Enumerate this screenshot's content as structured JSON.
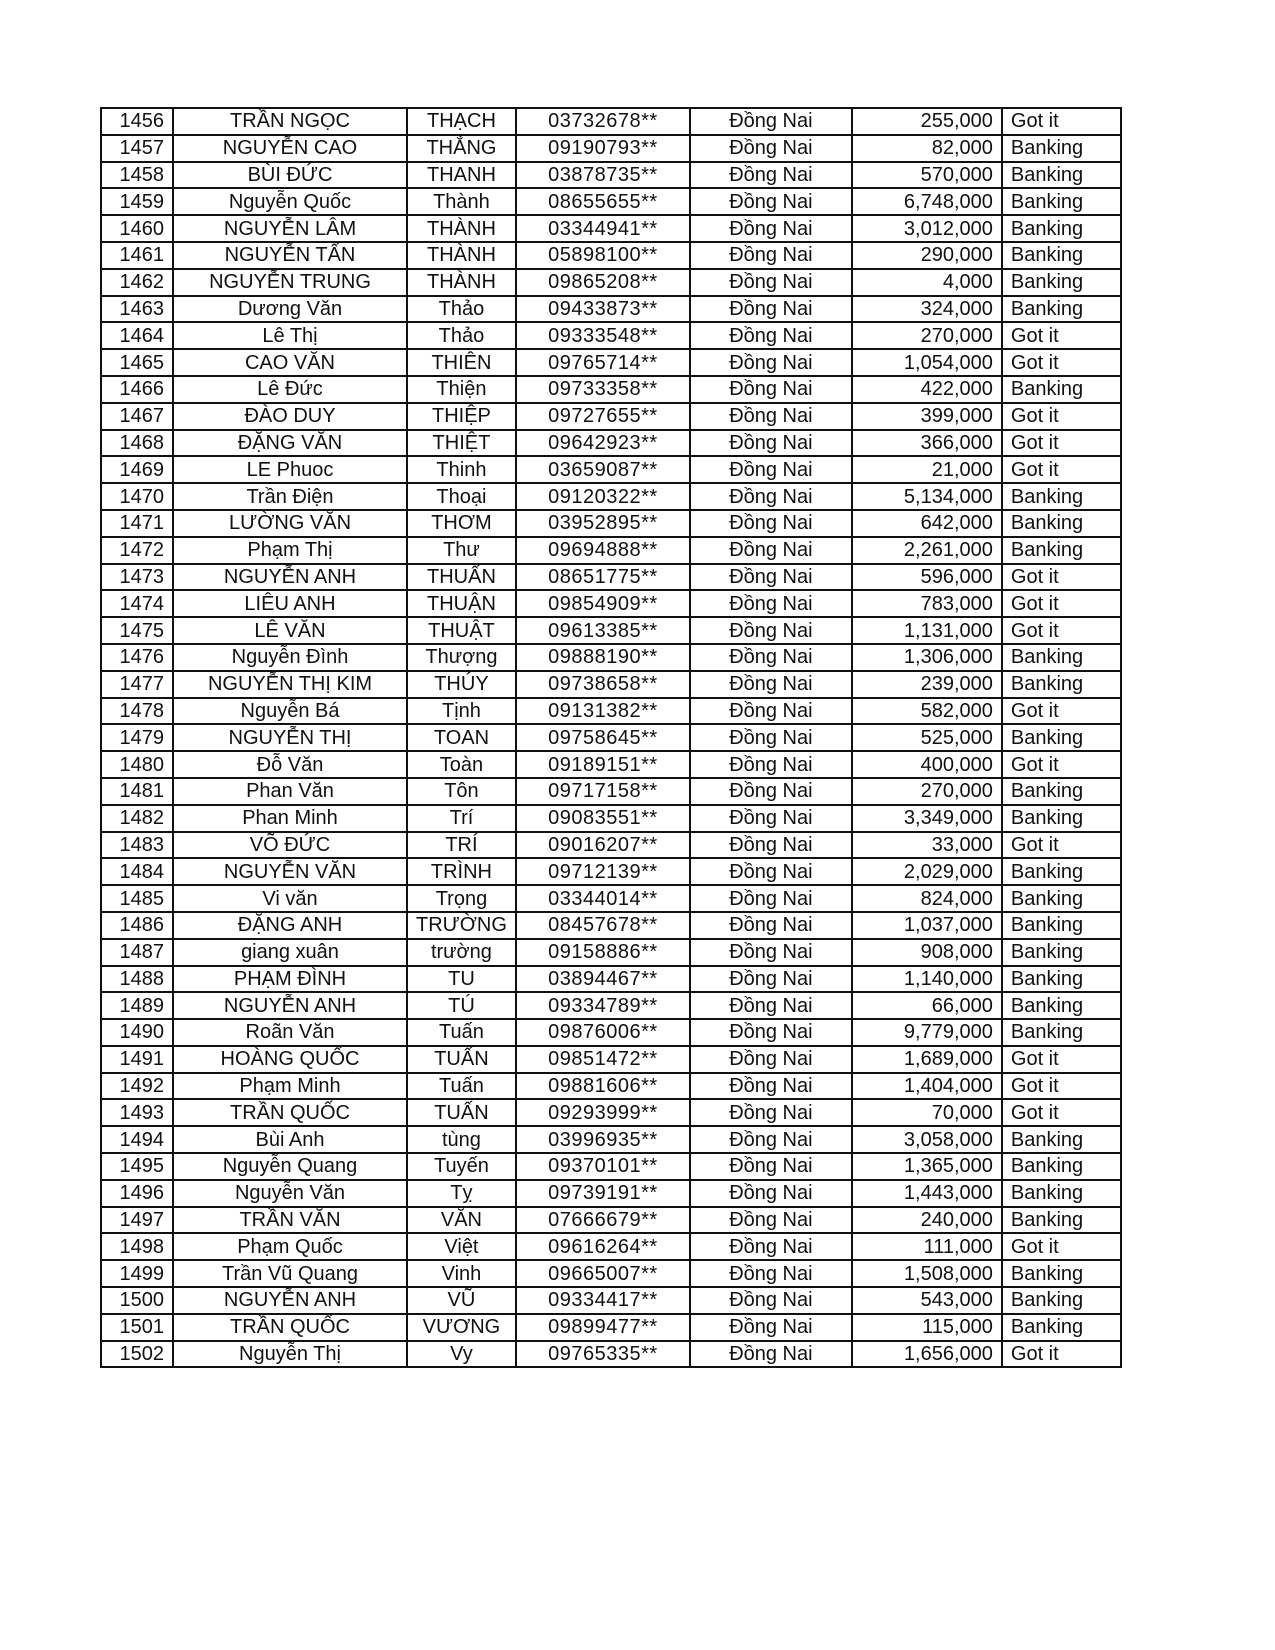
{
  "rows": [
    [
      "1456",
      "TRẦN NGỌC",
      "THẠCH",
      "03732678**",
      "Đồng Nai",
      "255,000",
      "Got it"
    ],
    [
      "1457",
      "NGUYỄN CAO",
      "THẮNG",
      "09190793**",
      "Đồng Nai",
      "82,000",
      "Banking"
    ],
    [
      "1458",
      "BÙI ĐỨC",
      "THANH",
      "03878735**",
      "Đồng Nai",
      "570,000",
      "Banking"
    ],
    [
      "1459",
      "Nguyễn Quốc",
      "Thành",
      "08655655**",
      "Đồng Nai",
      "6,748,000",
      "Banking"
    ],
    [
      "1460",
      "NGUYỄN LÂM",
      "THÀNH",
      "03344941**",
      "Đồng Nai",
      "3,012,000",
      "Banking"
    ],
    [
      "1461",
      "NGUYỄN TẤN",
      "THÀNH",
      "05898100**",
      "Đồng Nai",
      "290,000",
      "Banking"
    ],
    [
      "1462",
      "NGUYỄN TRUNG",
      "THÀNH",
      "09865208**",
      "Đồng Nai",
      "4,000",
      "Banking"
    ],
    [
      "1463",
      "Dương Văn",
      "Thảo",
      "09433873**",
      "Đồng Nai",
      "324,000",
      "Banking"
    ],
    [
      "1464",
      "Lê Thị",
      "Thảo",
      "09333548**",
      "Đồng Nai",
      "270,000",
      "Got it"
    ],
    [
      "1465",
      "CAO VĂN",
      "THIÊN",
      "09765714**",
      "Đồng Nai",
      "1,054,000",
      "Got it"
    ],
    [
      "1466",
      "Lê Đức",
      "Thiện",
      "09733358**",
      "Đồng Nai",
      "422,000",
      "Banking"
    ],
    [
      "1467",
      "ĐÀO DUY",
      "THIỆP",
      "09727655**",
      "Đồng Nai",
      "399,000",
      "Got it"
    ],
    [
      "1468",
      "ĐẶNG VĂN",
      "THIỆT",
      "09642923**",
      "Đồng Nai",
      "366,000",
      "Got it"
    ],
    [
      "1469",
      "LE Phuoc",
      "Thinh",
      "03659087**",
      "Đồng Nai",
      "21,000",
      "Got it"
    ],
    [
      "1470",
      "Trần Điện",
      "Thoại",
      "09120322**",
      "Đồng Nai",
      "5,134,000",
      "Banking"
    ],
    [
      "1471",
      "LƯỜNG VĂN",
      "THƠM",
      "03952895**",
      "Đồng Nai",
      "642,000",
      "Banking"
    ],
    [
      "1472",
      "Phạm Thị",
      "Thư",
      "09694888**",
      "Đồng Nai",
      "2,261,000",
      "Banking"
    ],
    [
      "1473",
      "NGUYỄN ANH",
      "THUẤN",
      "08651775**",
      "Đồng Nai",
      "596,000",
      "Got it"
    ],
    [
      "1474",
      "LIÊU ANH",
      "THUẬN",
      "09854909**",
      "Đồng Nai",
      "783,000",
      "Got it"
    ],
    [
      "1475",
      "LÊ VĂN",
      "THUẬT",
      "09613385**",
      "Đồng Nai",
      "1,131,000",
      "Got it"
    ],
    [
      "1476",
      "Nguyễn Đình",
      "Thượng",
      "09888190**",
      "Đồng Nai",
      "1,306,000",
      "Banking"
    ],
    [
      "1477",
      "NGUYỄN THỊ KIM",
      "THÚY",
      "09738658**",
      "Đồng Nai",
      "239,000",
      "Banking"
    ],
    [
      "1478",
      "Nguyễn Bá",
      "Tịnh",
      "09131382**",
      "Đồng Nai",
      "582,000",
      "Got it"
    ],
    [
      "1479",
      "NGUYỄN THỊ",
      "TOAN",
      "09758645**",
      "Đồng Nai",
      "525,000",
      "Banking"
    ],
    [
      "1480",
      "Đỗ Văn",
      "Toàn",
      "09189151**",
      "Đồng Nai",
      "400,000",
      "Got it"
    ],
    [
      "1481",
      "Phan Văn",
      "Tôn",
      "09717158**",
      "Đồng Nai",
      "270,000",
      "Banking"
    ],
    [
      "1482",
      "Phan Minh",
      "Trí",
      "09083551**",
      "Đồng Nai",
      "3,349,000",
      "Banking"
    ],
    [
      "1483",
      "VÕ ĐỨC",
      "TRÍ",
      "09016207**",
      "Đồng Nai",
      "33,000",
      "Got it"
    ],
    [
      "1484",
      "NGUYỄN VĂN",
      "TRÌNH",
      "09712139**",
      "Đồng Nai",
      "2,029,000",
      "Banking"
    ],
    [
      "1485",
      "Vi văn",
      "Trọng",
      "03344014**",
      "Đồng Nai",
      "824,000",
      "Banking"
    ],
    [
      "1486",
      "ĐẶNG ANH",
      "TRƯỜNG",
      "08457678**",
      "Đồng Nai",
      "1,037,000",
      "Banking"
    ],
    [
      "1487",
      "giang xuân",
      "trường",
      "09158886**",
      "Đồng Nai",
      "908,000",
      "Banking"
    ],
    [
      "1488",
      "PHẠM ĐÌNH",
      "TU",
      "03894467**",
      "Đồng Nai",
      "1,140,000",
      "Banking"
    ],
    [
      "1489",
      "NGUYỄN ANH",
      "TÚ",
      "09334789**",
      "Đồng Nai",
      "66,000",
      "Banking"
    ],
    [
      "1490",
      "Roãn Văn",
      "Tuấn",
      "09876006**",
      "Đồng Nai",
      "9,779,000",
      "Banking"
    ],
    [
      "1491",
      "HOÀNG QUỐC",
      "TUẤN",
      "09851472**",
      "Đồng Nai",
      "1,689,000",
      "Got it"
    ],
    [
      "1492",
      "Phạm Minh",
      "Tuấn",
      "09881606**",
      "Đồng Nai",
      "1,404,000",
      "Got it"
    ],
    [
      "1493",
      "TRẦN QUỐC",
      "TUẤN",
      "09293999**",
      "Đồng Nai",
      "70,000",
      "Got it"
    ],
    [
      "1494",
      "Bùi Anh",
      "tùng",
      "03996935**",
      "Đồng Nai",
      "3,058,000",
      "Banking"
    ],
    [
      "1495",
      "Nguyễn Quang",
      "Tuyến",
      "09370101**",
      "Đồng Nai",
      "1,365,000",
      "Banking"
    ],
    [
      "1496",
      "Nguyễn Văn",
      "Tỵ",
      "09739191**",
      "Đồng Nai",
      "1,443,000",
      "Banking"
    ],
    [
      "1497",
      "TRẦN VĂN",
      "VĂN",
      "07666679**",
      "Đồng Nai",
      "240,000",
      "Banking"
    ],
    [
      "1498",
      "Phạm Quốc",
      "Việt",
      "09616264**",
      "Đồng Nai",
      "111,000",
      "Got it"
    ],
    [
      "1499",
      "Trần Vũ Quang",
      "Vinh",
      "09665007**",
      "Đồng Nai",
      "1,508,000",
      "Banking"
    ],
    [
      "1500",
      "NGUYỄN ANH",
      "VŨ",
      "09334417**",
      "Đồng Nai",
      "543,000",
      "Banking"
    ],
    [
      "1501",
      "TRẦN QUỐC",
      "VƯƠNG",
      "09899477**",
      "Đồng Nai",
      "115,000",
      "Banking"
    ],
    [
      "1502",
      "Nguyễn Thị",
      "Vy",
      "09765335**",
      "Đồng Nai",
      "1,656,000",
      "Got it"
    ]
  ]
}
